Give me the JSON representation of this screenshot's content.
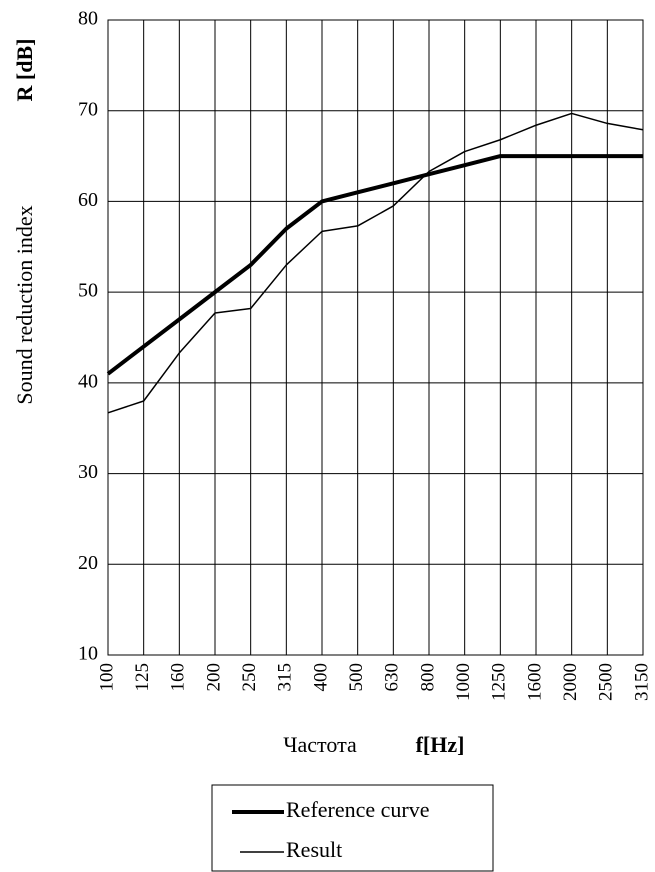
{
  "chart_data": {
    "type": "line",
    "ylabel": "Sound reduction index",
    "ylabel_unit": "R [dB]",
    "xlabel": "Частота",
    "xlabel_unit": "f[Hz]",
    "categories": [
      "100",
      "125",
      "160",
      "200",
      "250",
      "315",
      "400",
      "500",
      "630",
      "800",
      "1000",
      "1250",
      "1600",
      "2000",
      "2500",
      "3150"
    ],
    "series": [
      {
        "name": "Reference curve",
        "color": "#000000",
        "width": 4,
        "values": [
          41,
          44,
          47,
          50,
          53,
          57,
          60,
          61,
          62,
          63,
          64,
          65,
          65,
          65,
          65,
          65
        ]
      },
      {
        "name": "Result",
        "color": "#000000",
        "width": 1.5,
        "values": [
          36.7,
          38,
          43.3,
          47.7,
          48.2,
          53,
          56.7,
          57.3,
          59.5,
          63.3,
          65.5,
          66.8,
          68.4,
          69.7,
          68.6,
          67.9
        ]
      }
    ],
    "ylim": [
      10,
      80
    ],
    "yticks": [
      10,
      20,
      30,
      40,
      50,
      60,
      70,
      80
    ],
    "grid": true,
    "legend": "bottom"
  }
}
